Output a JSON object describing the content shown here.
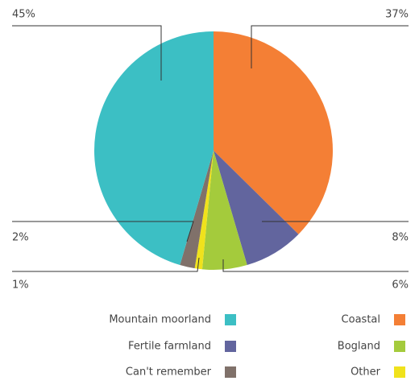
{
  "chart_data": {
    "type": "pie",
    "categories": [
      "Coastal",
      "Fertile farmland",
      "Bogland",
      "Other",
      "Can't remember",
      "Mountain moorland"
    ],
    "values": [
      37,
      8,
      6,
      1,
      2,
      45
    ],
    "value_labels": [
      "37%",
      "8%",
      "6%",
      "1%",
      "2%",
      "45%"
    ],
    "colors": [
      "#f47f35",
      "#62659e",
      "#a4cb3c",
      "#f0e21c",
      "#80716a",
      "#3cbfc4"
    ]
  }
}
